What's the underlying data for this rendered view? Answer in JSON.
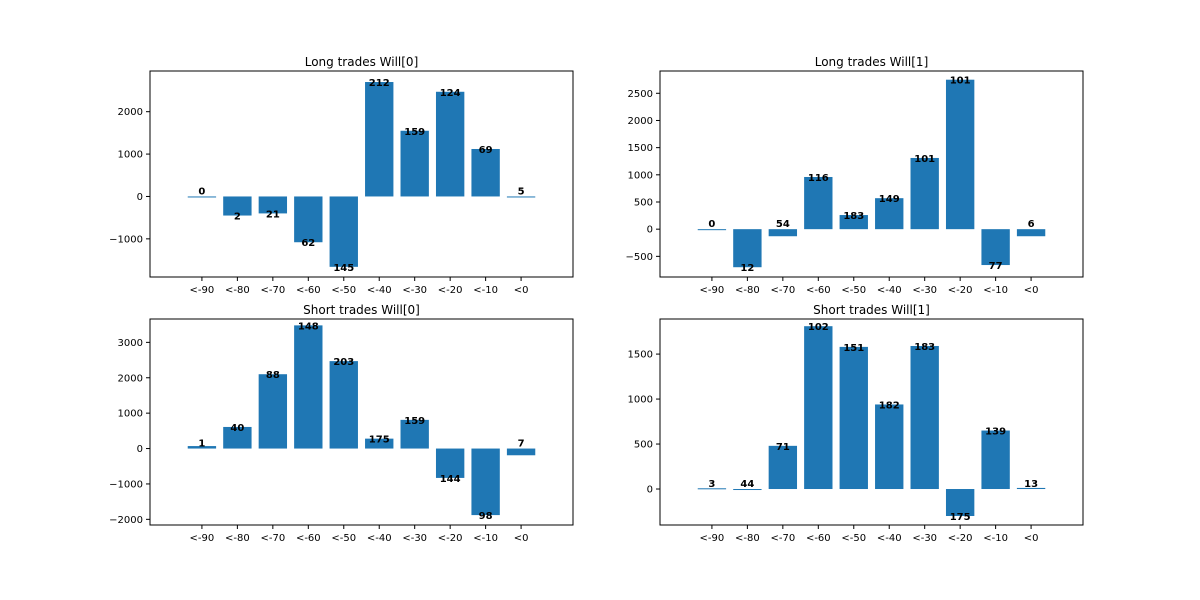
{
  "colors": {
    "bar": "#1f77b4",
    "axis": "#000000",
    "background": "#ffffff"
  },
  "chart_data": [
    {
      "type": "bar",
      "title": "Long trades Will[0]",
      "categories": [
        "<-90",
        "<-80",
        "<-70",
        "<-60",
        "<-50",
        "<-40",
        "<-30",
        "<-20",
        "<-10",
        "<0"
      ],
      "values": [
        0,
        -450,
        -400,
        -1080,
        -1660,
        2700,
        1550,
        2470,
        1120,
        -20
      ],
      "labels": [
        "0",
        "2",
        "21",
        "62",
        "145",
        "212",
        "159",
        "124",
        "69",
        "5"
      ],
      "yticks": [
        -1000,
        0,
        1000,
        2000
      ],
      "ylim": [
        -1900,
        2960
      ],
      "xlabel": "",
      "ylabel": ""
    },
    {
      "type": "bar",
      "title": "Long trades Will[1]",
      "categories": [
        "<-90",
        "<-80",
        "<-70",
        "<-60",
        "<-50",
        "<-40",
        "<-30",
        "<-20",
        "<-10",
        "<0"
      ],
      "values": [
        0,
        -700,
        -130,
        960,
        260,
        570,
        1310,
        2750,
        -660,
        -130
      ],
      "labels": [
        "0",
        "12",
        "54",
        "116",
        "183",
        "149",
        "101",
        "101",
        "77",
        "6"
      ],
      "yticks": [
        -500,
        0,
        500,
        1000,
        1500,
        2000,
        2500
      ],
      "ylim": [
        -880,
        2910
      ],
      "xlabel": "",
      "ylabel": ""
    },
    {
      "type": "bar",
      "title": "Short trades Will[0]",
      "categories": [
        "<-90",
        "<-80",
        "<-70",
        "<-60",
        "<-50",
        "<-40",
        "<-30",
        "<-20",
        "<-10",
        "<0"
      ],
      "values": [
        70,
        610,
        2100,
        3480,
        2470,
        280,
        810,
        -830,
        -1880,
        -190
      ],
      "labels": [
        "1",
        "40",
        "88",
        "148",
        "203",
        "175",
        "159",
        "144",
        "98",
        "7"
      ],
      "yticks": [
        -2000,
        -1000,
        0,
        1000,
        2000,
        3000
      ],
      "ylim": [
        -2160,
        3660
      ],
      "xlabel": "",
      "ylabel": ""
    },
    {
      "type": "bar",
      "title": "Short trades Will[1]",
      "categories": [
        "<-90",
        "<-80",
        "<-70",
        "<-60",
        "<-50",
        "<-40",
        "<-30",
        "<-20",
        "<-10",
        "<0"
      ],
      "values": [
        8,
        0,
        480,
        1810,
        1580,
        940,
        1590,
        -300,
        650,
        12
      ],
      "labels": [
        "3",
        "44",
        "71",
        "102",
        "151",
        "182",
        "183",
        "175",
        "139",
        "13"
      ],
      "yticks": [
        0,
        500,
        1000,
        1500
      ],
      "ylim": [
        -400,
        1890
      ],
      "xlabel": "",
      "ylabel": ""
    }
  ]
}
